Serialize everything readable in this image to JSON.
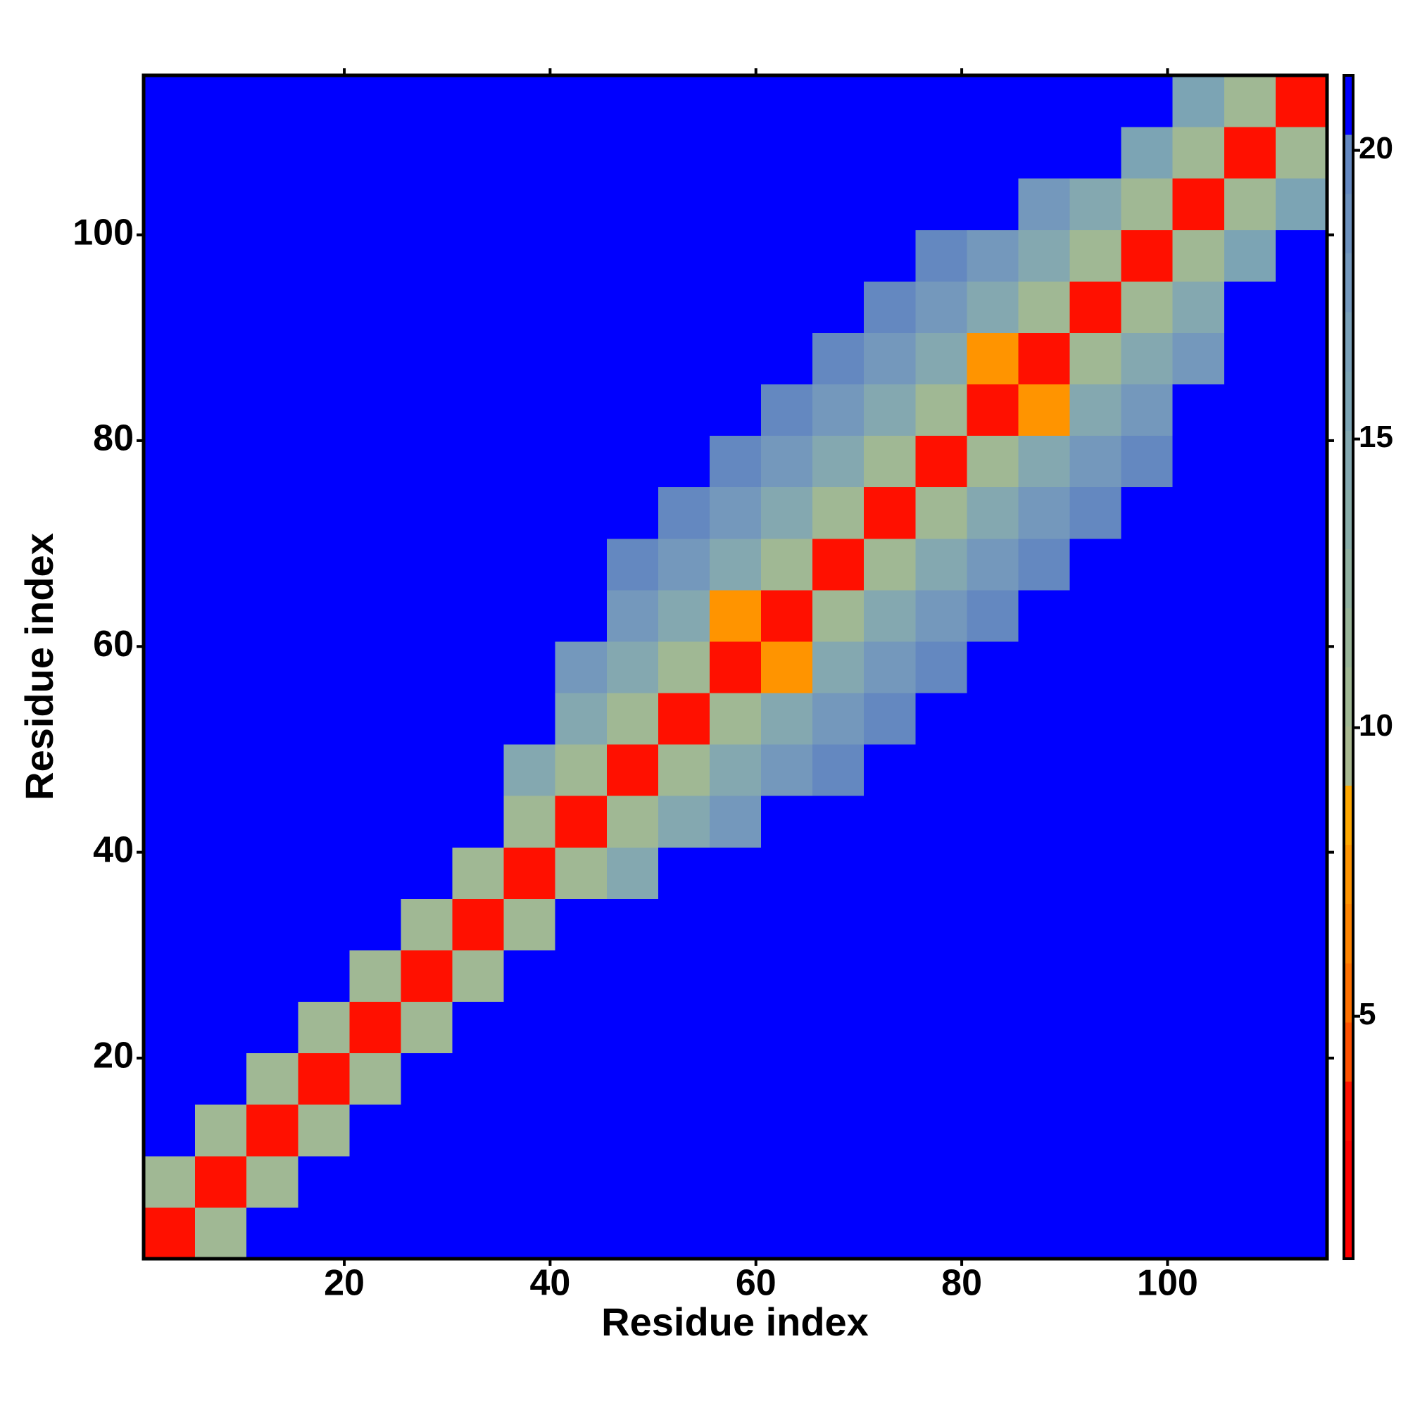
{
  "chart_data": {
    "type": "heatmap",
    "xlabel": "Residue index",
    "ylabel": "Residue index",
    "xlim": [
      0.5,
      115.5
    ],
    "ylim": [
      0.5,
      115.5
    ],
    "xticks": [
      20,
      40,
      60,
      80,
      100
    ],
    "yticks": [
      20,
      40,
      60,
      80,
      100
    ],
    "xbins": [
      0.5,
      5.5,
      10.5,
      15.5,
      20.5,
      25.5,
      30.5,
      35.5,
      40.5,
      45.5,
      50.5,
      55.5,
      60.5,
      65.5,
      70.5,
      75.5,
      80.5,
      85.5,
      90.5,
      95.5,
      100.5,
      105.5,
      110.5,
      115.5
    ],
    "ybins": [
      0.5,
      5.5,
      10.5,
      15.5,
      20.5,
      25.5,
      30.5,
      35.5,
      40.5,
      45.5,
      50.5,
      55.5,
      60.5,
      65.5,
      70.5,
      75.5,
      80.5,
      85.5,
      90.5,
      95.5,
      100.5,
      105.5,
      110.5,
      115.5
    ],
    "clim": [
      0.8,
      21.3
    ],
    "cticks": [
      5,
      10,
      15,
      20
    ],
    "colormap": [
      "#ff0000",
      "#ff0000",
      "#ff1000",
      "#ff5000",
      "#ff7000",
      "#ff8400",
      "#ff9400",
      "#ffa800",
      "#a8b890",
      "#a0b894",
      "#98b498",
      "#90b0a0",
      "#88aca8",
      "#84a8b0",
      "#7ca4b4",
      "#7aa0b8",
      "#7498bc",
      "#6c90bc",
      "#6488c0",
      "#0000ff"
    ],
    "z": [
      [
        3,
        11,
        21,
        21,
        21,
        21,
        21,
        21,
        21,
        21,
        21,
        21,
        21,
        21,
        21,
        21,
        21,
        21,
        21,
        21,
        21,
        21,
        21
      ],
      [
        11,
        3,
        11,
        21,
        21,
        21,
        21,
        21,
        21,
        21,
        21,
        21,
        21,
        21,
        21,
        21,
        21,
        21,
        21,
        21,
        21,
        21,
        21
      ],
      [
        21,
        11,
        3,
        11,
        21,
        21,
        21,
        21,
        21,
        21,
        21,
        21,
        21,
        21,
        21,
        21,
        21,
        21,
        21,
        21,
        21,
        21,
        21
      ],
      [
        21,
        21,
        11,
        3,
        11,
        21,
        21,
        21,
        21,
        21,
        21,
        21,
        21,
        21,
        21,
        21,
        21,
        21,
        21,
        21,
        21,
        21,
        21
      ],
      [
        21,
        21,
        21,
        11,
        3,
        11,
        21,
        21,
        21,
        21,
        21,
        21,
        21,
        21,
        21,
        21,
        21,
        21,
        21,
        21,
        21,
        21,
        21
      ],
      [
        21,
        21,
        21,
        21,
        11,
        3,
        11,
        21,
        21,
        21,
        21,
        21,
        21,
        21,
        21,
        21,
        21,
        21,
        21,
        21,
        21,
        21,
        21
      ],
      [
        21,
        21,
        21,
        21,
        21,
        11,
        3,
        11,
        21,
        21,
        21,
        21,
        21,
        21,
        21,
        21,
        21,
        21,
        21,
        21,
        21,
        21,
        21
      ],
      [
        21,
        21,
        21,
        21,
        21,
        21,
        11,
        3,
        11,
        15,
        21,
        21,
        21,
        21,
        21,
        21,
        21,
        21,
        21,
        21,
        21,
        21,
        21
      ],
      [
        21,
        21,
        21,
        21,
        21,
        21,
        21,
        11,
        3,
        11,
        15,
        18,
        21,
        21,
        21,
        21,
        21,
        21,
        21,
        21,
        21,
        21,
        21
      ],
      [
        21,
        21,
        21,
        21,
        21,
        21,
        21,
        15,
        11,
        3,
        11,
        15,
        18,
        20,
        21,
        21,
        21,
        21,
        21,
        21,
        21,
        21,
        21
      ],
      [
        21,
        21,
        21,
        21,
        21,
        21,
        21,
        21,
        15,
        11,
        3,
        11,
        15,
        18,
        20,
        21,
        21,
        21,
        21,
        21,
        21,
        21,
        21
      ],
      [
        21,
        21,
        21,
        21,
        21,
        21,
        21,
        21,
        18,
        15,
        11,
        3,
        7,
        15,
        18,
        20,
        21,
        21,
        21,
        21,
        21,
        21,
        21
      ],
      [
        21,
        21,
        21,
        21,
        21,
        21,
        21,
        21,
        21,
        18,
        15,
        7,
        3,
        11,
        15,
        18,
        20,
        21,
        21,
        21,
        21,
        21,
        21
      ],
      [
        21,
        21,
        21,
        21,
        21,
        21,
        21,
        21,
        21,
        20,
        18,
        15,
        11,
        3,
        11,
        15,
        18,
        20,
        21,
        21,
        21,
        21,
        21
      ],
      [
        21,
        21,
        21,
        21,
        21,
        21,
        21,
        21,
        21,
        21,
        20,
        18,
        15,
        11,
        3,
        11,
        15,
        18,
        20,
        21,
        21,
        21,
        21
      ],
      [
        21,
        21,
        21,
        21,
        21,
        21,
        21,
        21,
        21,
        21,
        21,
        20,
        18,
        15,
        11,
        3,
        11,
        15,
        18,
        20,
        21,
        21,
        21
      ],
      [
        21,
        21,
        21,
        21,
        21,
        21,
        21,
        21,
        21,
        21,
        21,
        21,
        20,
        18,
        15,
        11,
        3,
        7,
        15,
        18,
        21,
        21,
        21
      ],
      [
        21,
        21,
        21,
        21,
        21,
        21,
        21,
        21,
        21,
        21,
        21,
        21,
        21,
        20,
        18,
        15,
        7,
        3,
        11,
        15,
        18,
        21,
        21
      ],
      [
        21,
        21,
        21,
        21,
        21,
        21,
        21,
        21,
        21,
        21,
        21,
        21,
        21,
        21,
        20,
        18,
        15,
        11,
        3,
        11,
        15,
        21,
        21
      ],
      [
        21,
        21,
        21,
        21,
        21,
        21,
        21,
        21,
        21,
        21,
        21,
        21,
        21,
        21,
        21,
        20,
        18,
        15,
        11,
        3,
        11,
        16,
        21
      ],
      [
        21,
        21,
        21,
        21,
        21,
        21,
        21,
        21,
        21,
        21,
        21,
        21,
        21,
        21,
        21,
        21,
        21,
        18,
        15,
        11,
        3,
        11,
        16
      ],
      [
        21,
        21,
        21,
        21,
        21,
        21,
        21,
        21,
        21,
        21,
        21,
        21,
        21,
        21,
        21,
        21,
        21,
        21,
        21,
        16,
        11,
        3,
        11
      ],
      [
        21,
        21,
        21,
        21,
        21,
        21,
        21,
        21,
        21,
        21,
        21,
        21,
        21,
        21,
        21,
        21,
        21,
        21,
        21,
        21,
        16,
        11,
        3
      ]
    ]
  }
}
